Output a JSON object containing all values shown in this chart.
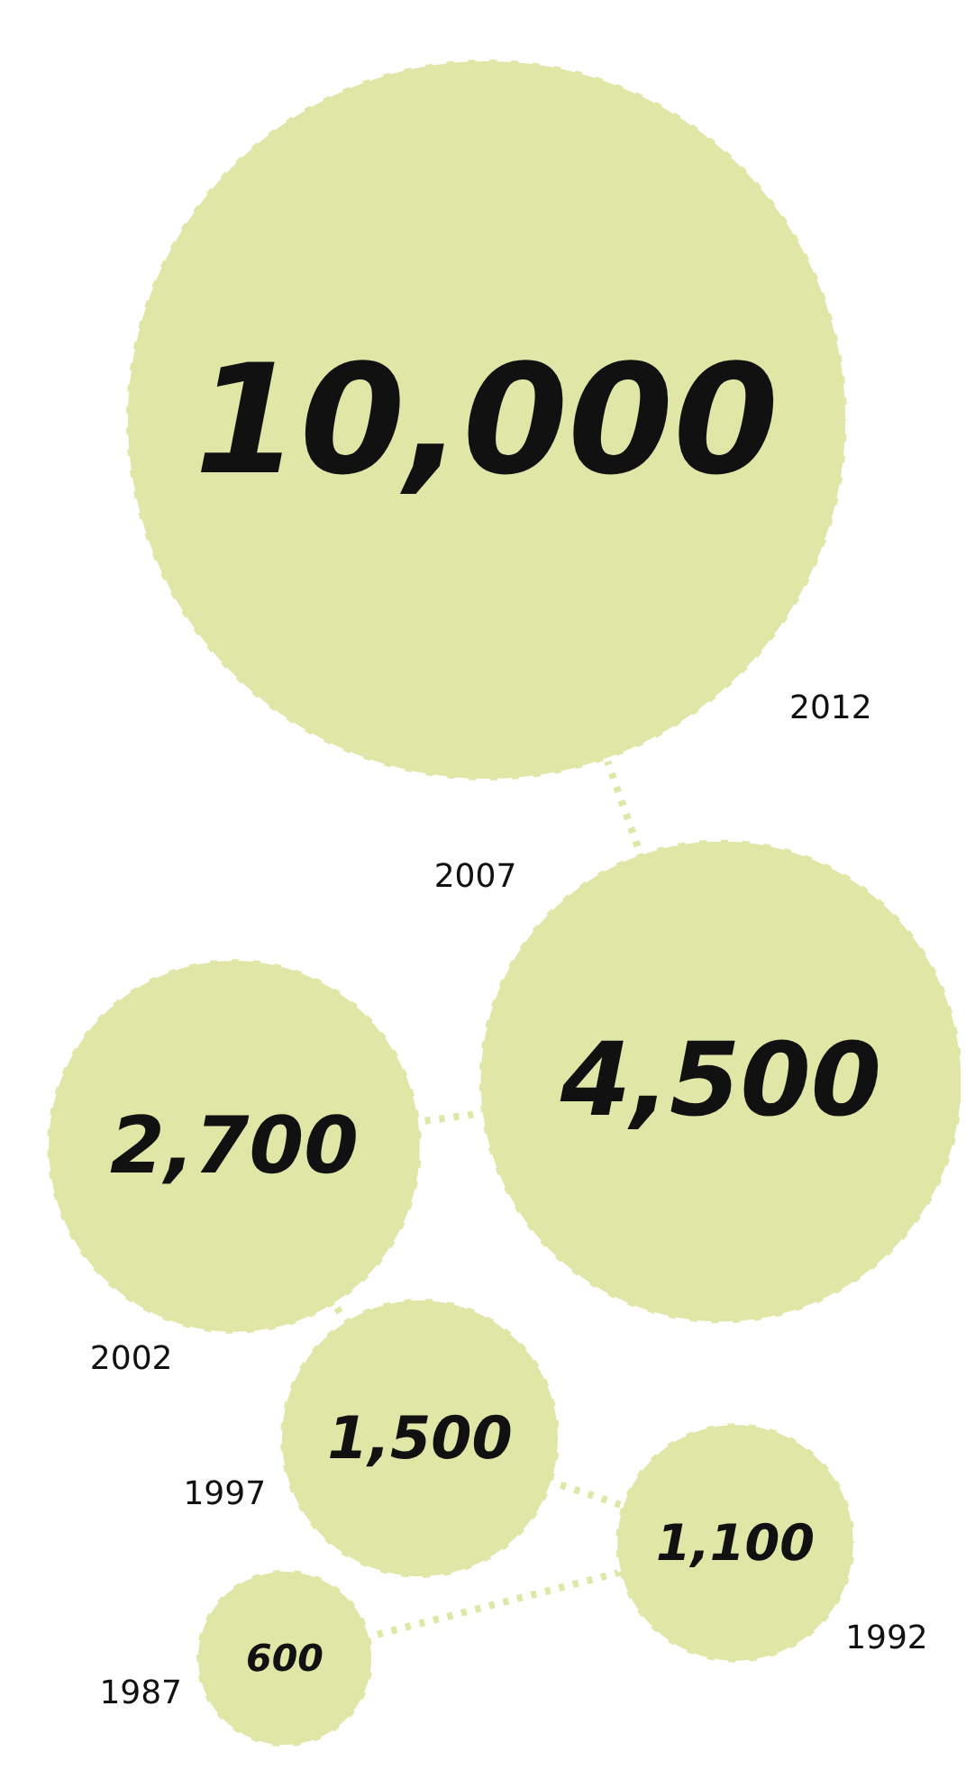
{
  "chart_data": {
    "type": "other",
    "categories": [
      "2012",
      "2007",
      "2002",
      "1997",
      "1992",
      "1987"
    ],
    "values": [
      10000,
      4500,
      2700,
      1500,
      1100,
      600
    ],
    "value_labels": [
      "10,000",
      "4,500",
      "2,700",
      "1,500",
      "1,100",
      "600"
    ],
    "color": "#dfe6a6"
  }
}
